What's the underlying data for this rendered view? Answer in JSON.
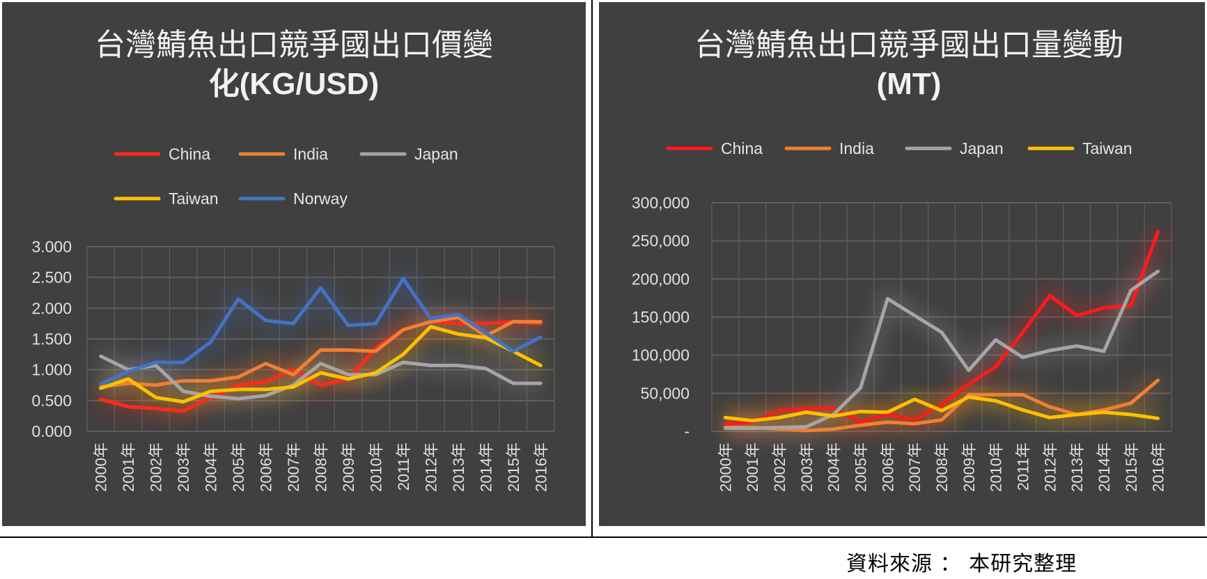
{
  "source_note": "資料來源 ： 本研究整理",
  "chart_data": [
    {
      "type": "line",
      "title_lines": [
        "台灣鯖魚出口競爭國出口價變",
        "化(KG/USD)"
      ],
      "xlabel": "",
      "ylabel": "",
      "ylim": [
        0,
        3
      ],
      "yticks": [
        0,
        0.5,
        1,
        1.5,
        2,
        2.5,
        3
      ],
      "ytick_labels": [
        "0.000",
        "0.500",
        "1.000",
        "1.500",
        "2.000",
        "2.500",
        "3.000"
      ],
      "grid": true,
      "legend_position": "top",
      "categories": [
        "2000年",
        "2001年",
        "2002年",
        "2003年",
        "2004年",
        "2005年",
        "2006年",
        "2007年",
        "2008年",
        "2009年",
        "2010年",
        "2011年",
        "2012年",
        "2013年",
        "2014年",
        "2015年",
        "2016年"
      ],
      "series": [
        {
          "name": "China",
          "color": "#ff2a1a",
          "values": [
            0.52,
            0.4,
            0.37,
            0.33,
            0.55,
            0.75,
            0.8,
            1.0,
            0.75,
            0.85,
            1.35,
            1.65,
            1.78,
            1.75,
            1.75,
            1.78,
            1.75
          ]
        },
        {
          "name": "India",
          "color": "#ef8033",
          "values": [
            0.72,
            0.78,
            0.75,
            0.82,
            0.82,
            0.88,
            1.1,
            0.92,
            1.32,
            1.32,
            1.3,
            1.65,
            1.78,
            1.85,
            1.55,
            1.78,
            1.78
          ]
        },
        {
          "name": "Japan",
          "color": "#a5a5a5",
          "values": [
            1.22,
            1.0,
            1.07,
            0.65,
            0.57,
            0.53,
            0.58,
            0.75,
            1.1,
            0.92,
            0.92,
            1.12,
            1.07,
            1.07,
            1.02,
            0.78,
            0.78
          ]
        },
        {
          "name": "Taiwan",
          "color": "#ffc000",
          "values": [
            0.7,
            0.85,
            0.55,
            0.48,
            0.65,
            0.68,
            0.68,
            0.72,
            0.95,
            0.85,
            0.95,
            1.25,
            1.7,
            1.58,
            1.52,
            1.3,
            1.07
          ]
        },
        {
          "name": "Norway",
          "color": "#4472c4",
          "values": [
            0.77,
            0.97,
            1.12,
            1.12,
            1.45,
            2.15,
            1.8,
            1.75,
            2.33,
            1.72,
            1.75,
            2.48,
            1.83,
            1.9,
            1.6,
            1.3,
            1.53
          ]
        }
      ]
    },
    {
      "type": "line",
      "title_lines": [
        "台灣鯖魚出口競爭國出口量變動",
        "(MT)"
      ],
      "xlabel": "",
      "ylabel": "",
      "ylim": [
        0,
        300000
      ],
      "yticks": [
        0,
        50000,
        100000,
        150000,
        200000,
        250000,
        300000
      ],
      "ytick_labels": [
        "-",
        "50,000",
        "100,000",
        "150,000",
        "200,000",
        "250,000",
        "300,000"
      ],
      "grid": true,
      "legend_position": "top",
      "categories": [
        "2000年",
        "2001年",
        "2002年",
        "2003年",
        "2004年",
        "2005年",
        "2006年",
        "2007年",
        "2008年",
        "2009年",
        "2010年",
        "2011年",
        "2012年",
        "2013年",
        "2014年",
        "2015年",
        "2016年"
      ],
      "series": [
        {
          "name": "China",
          "color": "#ff1a1a",
          "values": [
            10000,
            12000,
            27000,
            30000,
            30000,
            12000,
            22000,
            15000,
            35000,
            62000,
            85000,
            130000,
            178000,
            152000,
            162000,
            165000,
            262000
          ]
        },
        {
          "name": "India",
          "color": "#ef8033",
          "values": [
            5000,
            5000,
            3000,
            1000,
            3000,
            8000,
            12000,
            10000,
            15000,
            48000,
            48000,
            48000,
            32000,
            22000,
            28000,
            37000,
            67000
          ]
        },
        {
          "name": "Japan",
          "color": "#a5a5a5",
          "values": [
            4000,
            4000,
            5000,
            6000,
            22000,
            57000,
            174000,
            152000,
            130000,
            80000,
            120000,
            97000,
            106000,
            112000,
            105000,
            185000,
            210000
          ]
        },
        {
          "name": "Taiwan",
          "color": "#ffc000",
          "values": [
            18000,
            14000,
            18000,
            25000,
            20000,
            26000,
            25000,
            42000,
            27000,
            45000,
            40000,
            28000,
            18000,
            22000,
            25000,
            22000,
            17000
          ]
        }
      ]
    }
  ]
}
